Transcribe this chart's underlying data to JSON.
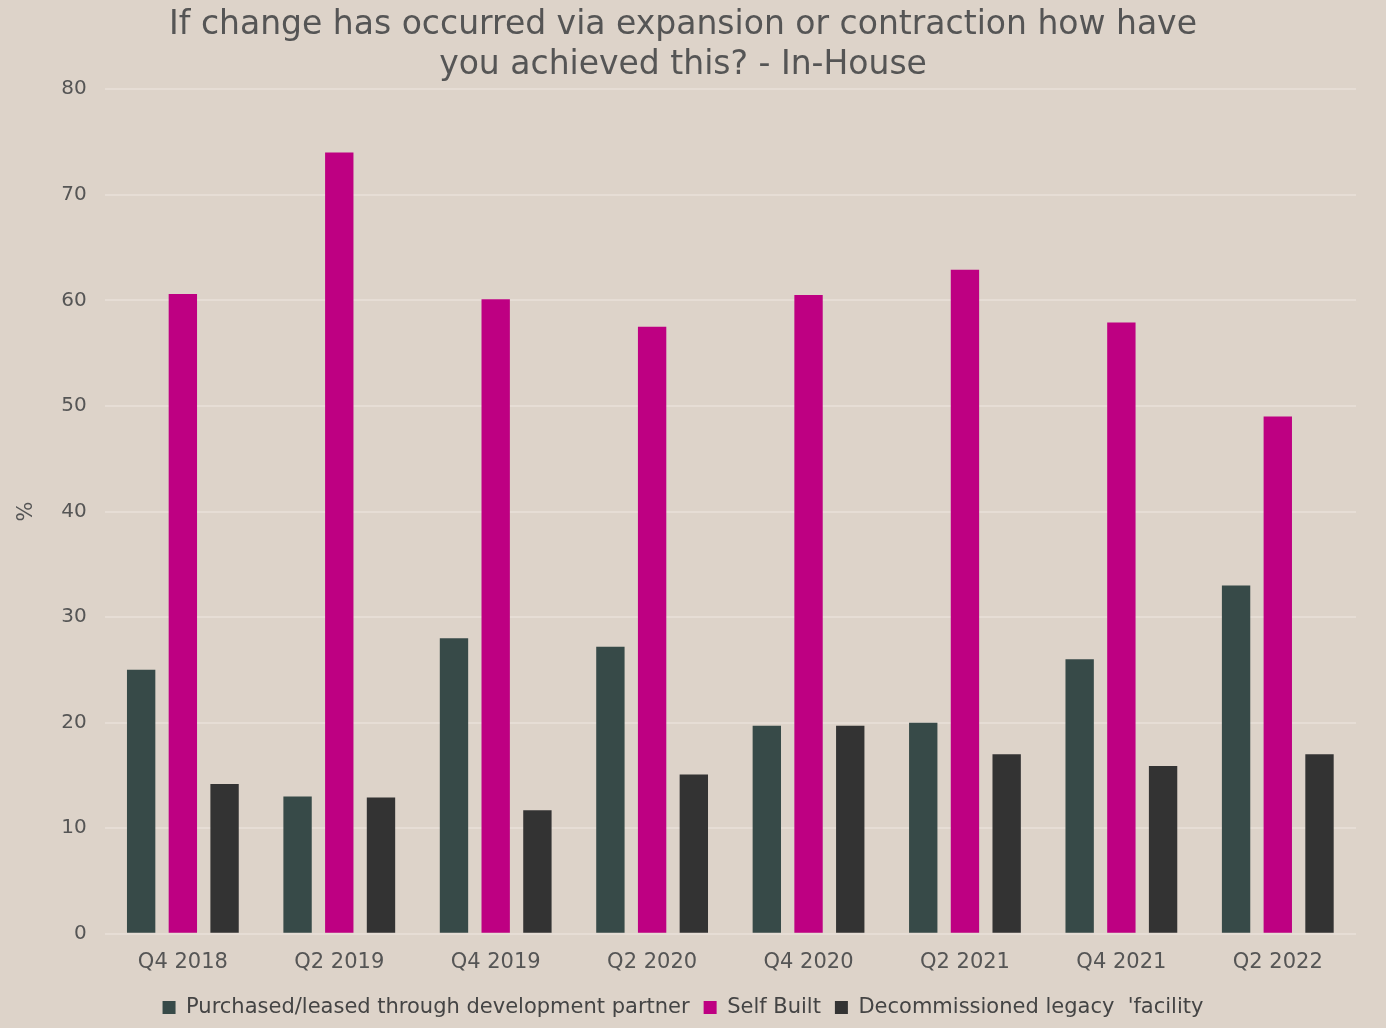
{
  "chart_data": {
    "type": "bar",
    "title": "If change has occurred via expansion or contraction how have you achieved this? - In-House",
    "ylabel": "%",
    "categories": [
      "Q4 2018",
      "Q2 2019",
      "Q4 2019",
      "Q2 2020",
      "Q4 2020",
      "Q2 2021",
      "Q4 2021",
      "Q2 2022"
    ],
    "series": [
      {
        "name": "Purchased/leased through development partner",
        "color": "#374a48",
        "values": [
          25,
          13,
          28,
          27.2,
          19.7,
          20,
          26,
          33
        ]
      },
      {
        "name": "Self Built",
        "color": "#be0082",
        "values": [
          60.6,
          74,
          60.1,
          57.5,
          60.5,
          62.9,
          57.9,
          49
        ]
      },
      {
        "name": "Decommissioned legacy  'facility",
        "color": "#333333",
        "values": [
          14.2,
          12.9,
          11.7,
          15.1,
          19.7,
          17,
          15.9,
          17
        ]
      }
    ],
    "ylim": [
      0,
      80
    ],
    "yticks": [
      0,
      10,
      20,
      30,
      40,
      50,
      60,
      70,
      80
    ],
    "grid": "y",
    "legend": "bottom"
  }
}
